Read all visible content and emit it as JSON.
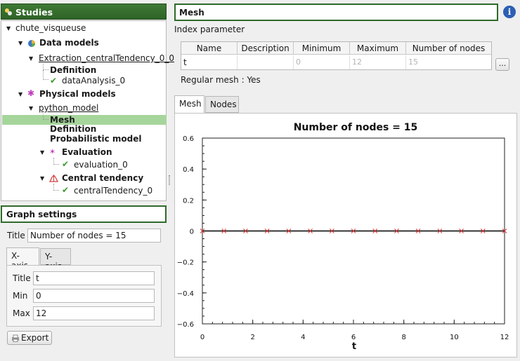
{
  "studies": {
    "title": "Studies",
    "tree": {
      "root": "chute_visqueuse",
      "data_models": "Data models",
      "extraction": "Extraction_centralTendency_0_0",
      "definition_1": "Definition",
      "data_analysis": "dataAnalysis_0",
      "physical_models": "Physical models",
      "python_model": "python_model",
      "mesh": "Mesh",
      "definition_2": "Definition",
      "probabilistic": "Probabilistic model",
      "evaluation": "Evaluation",
      "evaluation_0": "evaluation_0",
      "central_tendency": "Central tendency",
      "central_tendency_0": "centralTendency_0"
    }
  },
  "graph_settings": {
    "title": "Graph settings",
    "title_label": "Title",
    "title_value": "Number of nodes = 15",
    "tabs": [
      "X-axis",
      "Y-axis"
    ],
    "axis_title_label": "Title",
    "axis_title_value": "t",
    "min_label": "Min",
    "min_value": "0",
    "max_label": "Max",
    "max_value": "12",
    "export_label": "Export"
  },
  "mesh": {
    "title": "Mesh",
    "info_label": "i",
    "index_parameter_label": "Index parameter",
    "table": {
      "headers": [
        "Name",
        "Description",
        "Minimum",
        "Maximum",
        "Number of nodes"
      ],
      "row": [
        "t",
        "",
        "0",
        "12",
        "15"
      ]
    },
    "dots_label": "...",
    "regular_mesh": "Regular mesh : Yes",
    "tabs": [
      "Mesh",
      "Nodes"
    ]
  },
  "chart_data": {
    "type": "scatter",
    "title": "Number of nodes = 15",
    "xlabel": "t",
    "ylabel": "",
    "xlim": [
      0,
      12
    ],
    "ylim": [
      -0.6,
      0.6
    ],
    "xticks": [
      "0",
      "2",
      "4",
      "6",
      "8",
      "10",
      "12"
    ],
    "yticks": [
      "0.6",
      "0.4",
      "0.2",
      "0",
      "−0.2",
      "−0.4",
      "−0.6"
    ],
    "x": [
      0,
      0.857,
      1.714,
      2.571,
      3.429,
      4.286,
      5.143,
      6,
      6.857,
      7.714,
      8.571,
      9.429,
      10.286,
      11.143,
      12
    ],
    "y": [
      0,
      0,
      0,
      0,
      0,
      0,
      0,
      0,
      0,
      0,
      0,
      0,
      0,
      0,
      0
    ],
    "marker_color": "#e03030",
    "line_color": "#000000"
  },
  "colors": {
    "accent_green": "#2f6a2a",
    "selection": "#a6d59b"
  }
}
